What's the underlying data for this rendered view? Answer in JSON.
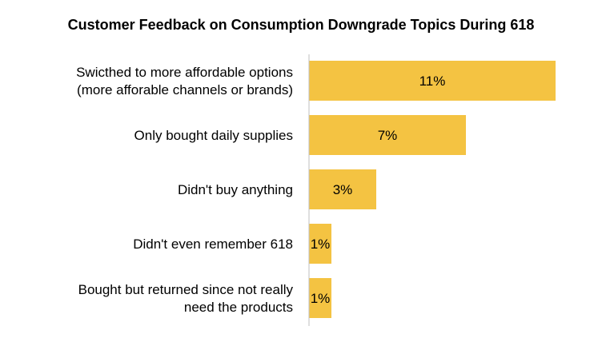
{
  "chart_data": {
    "type": "bar",
    "orientation": "horizontal",
    "title": "Customer Feedback on Consumption Downgrade Topics During 618",
    "categories": [
      [
        "Swicthed to more affordable options",
        "(more afforable channels or brands)"
      ],
      [
        "Only bought daily supplies"
      ],
      [
        "Didn't buy anything"
      ],
      [
        "Didn't even remember 618"
      ],
      [
        "Bought but returned since not really",
        "need the products"
      ]
    ],
    "values": [
      11,
      7,
      3,
      1,
      1
    ],
    "value_labels": [
      "11%",
      "7%",
      "3%",
      "1%",
      "1%"
    ],
    "xlabel": "",
    "ylabel": "",
    "xlim": [
      0,
      11
    ],
    "grid": false,
    "legend": "none",
    "bar_color": "#F4C342",
    "axis_color": "#BFBFBF"
  }
}
